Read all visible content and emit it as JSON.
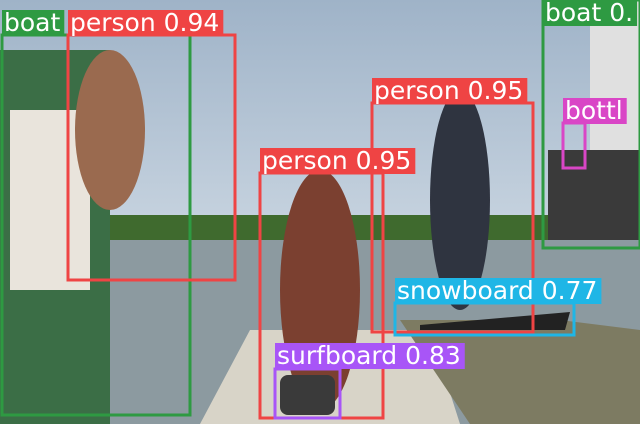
{
  "detections": [
    {
      "label": "boat",
      "color": "#2e9a42"
    },
    {
      "label": "person 0.94",
      "color": "#ef4444"
    },
    {
      "label": "boat 0.",
      "color": "#2e9a42"
    },
    {
      "label": "person 0.95",
      "color": "#ef4444"
    },
    {
      "label": "person 0.95",
      "color": "#ef4444"
    },
    {
      "label": "bottl",
      "color": "#d946c6"
    },
    {
      "label": "snowboard 0.77",
      "color": "#1fb6e6"
    },
    {
      "label": "surfboard 0.83",
      "color": "#a855f7"
    }
  ]
}
